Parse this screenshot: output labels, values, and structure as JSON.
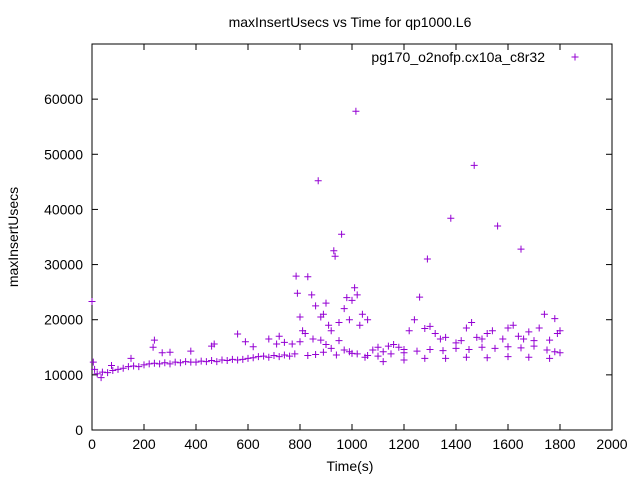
{
  "chart_data": {
    "type": "scatter",
    "title": "maxInsertUsecs vs Time for qp1000.L6",
    "xlabel": "Time(s)",
    "ylabel": "maxInsertUsecs",
    "xlim": [
      0,
      2000
    ],
    "ylim": [
      0,
      70000
    ],
    "x_ticks": [
      0,
      200,
      400,
      600,
      800,
      1000,
      1200,
      1400,
      1600,
      1800,
      2000
    ],
    "y_ticks": [
      0,
      10000,
      20000,
      30000,
      40000,
      50000,
      60000
    ],
    "x_tick_labels": [
      "0",
      "200",
      "400",
      "600",
      "800",
      "1000",
      "1200",
      "1400",
      "1600",
      "1800",
      "2000"
    ],
    "y_tick_labels": [
      "0",
      "10000",
      "20000",
      "30000",
      "40000",
      "50000",
      "60000"
    ],
    "grid": false,
    "legend_position": "top-right",
    "marker": "+",
    "series": [
      {
        "name": "pg170_o2nofp.cx10a_c8r32",
        "color": "#9400d3",
        "points": [
          [
            0,
            23300
          ],
          [
            5,
            12300
          ],
          [
            10,
            11000
          ],
          [
            20,
            10200
          ],
          [
            40,
            10500
          ],
          [
            60,
            10400
          ],
          [
            80,
            10800
          ],
          [
            100,
            11000
          ],
          [
            120,
            11200
          ],
          [
            140,
            11500
          ],
          [
            160,
            11600
          ],
          [
            180,
            11500
          ],
          [
            200,
            11800
          ],
          [
            220,
            12000
          ],
          [
            240,
            12100
          ],
          [
            260,
            12000
          ],
          [
            280,
            12200
          ],
          [
            300,
            12000
          ],
          [
            320,
            12300
          ],
          [
            340,
            12200
          ],
          [
            360,
            12400
          ],
          [
            380,
            12300
          ],
          [
            400,
            12300
          ],
          [
            420,
            12500
          ],
          [
            440,
            12400
          ],
          [
            460,
            12600
          ],
          [
            480,
            12400
          ],
          [
            500,
            12700
          ],
          [
            520,
            12600
          ],
          [
            540,
            12800
          ],
          [
            560,
            12700
          ],
          [
            580,
            12800
          ],
          [
            600,
            13000
          ],
          [
            620,
            13100
          ],
          [
            640,
            13300
          ],
          [
            660,
            13400
          ],
          [
            680,
            13200
          ],
          [
            700,
            13500
          ],
          [
            720,
            13300
          ],
          [
            740,
            13600
          ],
          [
            760,
            13400
          ],
          [
            780,
            13800
          ],
          [
            35,
            9500
          ],
          [
            75,
            11700
          ],
          [
            150,
            13000
          ],
          [
            235,
            15000
          ],
          [
            240,
            16300
          ],
          [
            270,
            14000
          ],
          [
            300,
            14100
          ],
          [
            380,
            14300
          ],
          [
            460,
            15200
          ],
          [
            470,
            15600
          ],
          [
            560,
            17400
          ],
          [
            590,
            16000
          ],
          [
            620,
            15100
          ],
          [
            680,
            16500
          ],
          [
            710,
            15600
          ],
          [
            720,
            17000
          ],
          [
            740,
            15900
          ],
          [
            770,
            15600
          ],
          [
            785,
            27900
          ],
          [
            790,
            24800
          ],
          [
            800,
            20500
          ],
          [
            810,
            18000
          ],
          [
            830,
            27800
          ],
          [
            845,
            24500
          ],
          [
            860,
            22500
          ],
          [
            870,
            45200
          ],
          [
            880,
            20500
          ],
          [
            890,
            21000
          ],
          [
            900,
            23000
          ],
          [
            910,
            19000
          ],
          [
            920,
            18000
          ],
          [
            930,
            32500
          ],
          [
            935,
            31500
          ],
          [
            950,
            19500
          ],
          [
            960,
            35500
          ],
          [
            970,
            22000
          ],
          [
            980,
            24000
          ],
          [
            990,
            20000
          ],
          [
            1000,
            23500
          ],
          [
            1010,
            25800
          ],
          [
            1015,
            57800
          ],
          [
            1020,
            24500
          ],
          [
            1030,
            19000
          ],
          [
            1040,
            21000
          ],
          [
            1060,
            20000
          ],
          [
            800,
            16000
          ],
          [
            820,
            17500
          ],
          [
            850,
            16500
          ],
          [
            880,
            16300
          ],
          [
            900,
            15500
          ],
          [
            920,
            14800
          ],
          [
            950,
            16200
          ],
          [
            970,
            14500
          ],
          [
            990,
            14200
          ],
          [
            1020,
            13800
          ],
          [
            830,
            13500
          ],
          [
            860,
            13700
          ],
          [
            890,
            14100
          ],
          [
            940,
            13600
          ],
          [
            1000,
            13900
          ],
          [
            1050,
            13200
          ],
          [
            1080,
            14500
          ],
          [
            1100,
            15000
          ],
          [
            1120,
            14200
          ],
          [
            1140,
            15200
          ],
          [
            1160,
            15500
          ],
          [
            1180,
            15000
          ],
          [
            1200,
            14600
          ],
          [
            1220,
            18000
          ],
          [
            1240,
            20000
          ],
          [
            1260,
            24100
          ],
          [
            1280,
            18400
          ],
          [
            1290,
            31000
          ],
          [
            1300,
            18800
          ],
          [
            1320,
            17500
          ],
          [
            1340,
            16500
          ],
          [
            1360,
            16800
          ],
          [
            1380,
            38400
          ],
          [
            1400,
            15800
          ],
          [
            1420,
            16200
          ],
          [
            1440,
            18500
          ],
          [
            1460,
            19500
          ],
          [
            1470,
            48000
          ],
          [
            1480,
            16800
          ],
          [
            1500,
            16500
          ],
          [
            1520,
            17500
          ],
          [
            1540,
            18000
          ],
          [
            1560,
            37000
          ],
          [
            1580,
            16500
          ],
          [
            1600,
            18500
          ],
          [
            1620,
            19000
          ],
          [
            1640,
            17000
          ],
          [
            1650,
            32800
          ],
          [
            1660,
            16500
          ],
          [
            1680,
            17800
          ],
          [
            1700,
            16200
          ],
          [
            1720,
            18500
          ],
          [
            1740,
            21000
          ],
          [
            1760,
            16300
          ],
          [
            1780,
            20200
          ],
          [
            1790,
            17500
          ],
          [
            1800,
            18000
          ],
          [
            1060,
            13500
          ],
          [
            1100,
            13400
          ],
          [
            1150,
            13800
          ],
          [
            1200,
            14000
          ],
          [
            1250,
            14300
          ],
          [
            1300,
            14600
          ],
          [
            1350,
            14400
          ],
          [
            1400,
            14800
          ],
          [
            1450,
            14600
          ],
          [
            1500,
            15000
          ],
          [
            1550,
            14800
          ],
          [
            1600,
            15100
          ],
          [
            1650,
            14900
          ],
          [
            1700,
            15200
          ],
          [
            1750,
            14500
          ],
          [
            1780,
            14200
          ],
          [
            1800,
            14000
          ],
          [
            1120,
            12400
          ],
          [
            1200,
            12700
          ],
          [
            1280,
            13000
          ],
          [
            1360,
            13000
          ],
          [
            1440,
            13200
          ],
          [
            1520,
            13100
          ],
          [
            1600,
            13300
          ],
          [
            1680,
            13200
          ],
          [
            1760,
            13000
          ]
        ]
      }
    ]
  }
}
